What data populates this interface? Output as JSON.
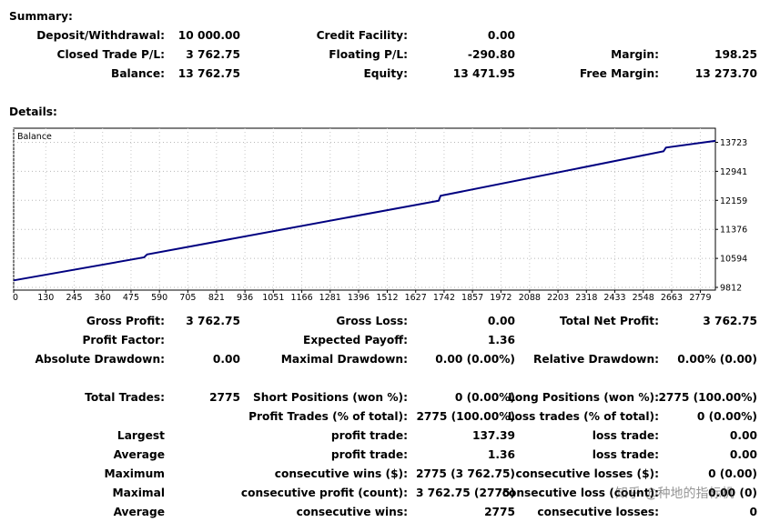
{
  "summary": {
    "title": "Summary:",
    "deposit_label": "Deposit/Withdrawal:",
    "deposit_value": "10 000.00",
    "credit_label": "Credit Facility:",
    "credit_value": "0.00",
    "closed_pl_label": "Closed Trade P/L:",
    "closed_pl_value": "3 762.75",
    "floating_label": "Floating P/L:",
    "floating_value": "-290.80",
    "margin_label": "Margin:",
    "margin_value": "198.25",
    "balance_label": "Balance:",
    "balance_value": "13 762.75",
    "equity_label": "Equity:",
    "equity_value": "13 471.95",
    "free_margin_label": "Free Margin:",
    "free_margin_value": "13 273.70"
  },
  "details": {
    "title": "Details:"
  },
  "chart_data": {
    "type": "line",
    "legend": "Balance",
    "x_ticks": [
      0,
      130,
      245,
      360,
      475,
      590,
      705,
      821,
      936,
      1051,
      1166,
      1281,
      1396,
      1512,
      1627,
      1742,
      1857,
      1972,
      2088,
      2203,
      2318,
      2433,
      2548,
      2663,
      2779
    ],
    "y_ticks": [
      9812,
      10594,
      11376,
      12159,
      12941,
      13723
    ],
    "xlim": [
      0,
      2840
    ],
    "ylim": [
      9812,
      13723
    ],
    "grid": true,
    "series": [
      {
        "name": "Balance",
        "color": "#000080",
        "x": [
          0,
          528,
          540,
          1720,
          1728,
          2630,
          2640,
          2840
        ],
        "y": [
          10000,
          10620,
          10700,
          12150,
          12280,
          13480,
          13580,
          13762.75
        ]
      }
    ]
  },
  "stats": {
    "gross_profit_label": "Gross Profit:",
    "gross_profit_value": "3 762.75",
    "gross_loss_label": "Gross Loss:",
    "gross_loss_value": "0.00",
    "total_net_label": "Total Net Profit:",
    "total_net_value": "3 762.75",
    "profit_factor_label": "Profit Factor:",
    "expected_payoff_label": "Expected Payoff:",
    "expected_payoff_value": "1.36",
    "abs_dd_label": "Absolute Drawdown:",
    "abs_dd_value": "0.00",
    "max_dd_label": "Maximal Drawdown:",
    "max_dd_value": "0.00 (0.00%)",
    "rel_dd_label": "Relative Drawdown:",
    "rel_dd_value": "0.00% (0.00)",
    "total_trades_label": "Total Trades:",
    "total_trades_value": "2775",
    "short_label": "Short Positions (won %):",
    "short_value": "0 (0.00%)",
    "long_label": "Long Positions (won %):",
    "long_value": "2775 (100.00%)",
    "profit_trades_label": "Profit Trades (% of total):",
    "profit_trades_value": "2775 (100.00%)",
    "loss_trades_label": "Loss trades (% of total):",
    "loss_trades_value": "0 (0.00%)",
    "largest_label": "Largest",
    "largest_profit_label": "profit trade:",
    "largest_profit_value": "137.39",
    "largest_loss_label": "loss trade:",
    "largest_loss_value": "0.00",
    "average_label": "Average",
    "avg_profit_label": "profit trade:",
    "avg_profit_value": "1.36",
    "avg_loss_label": "loss trade:",
    "avg_loss_value": "0.00",
    "maximum_label": "Maximum",
    "cons_wins_money_label": "consecutive wins ($):",
    "cons_wins_money_value": "2775 (3 762.75)",
    "cons_losses_money_label": "consecutive losses ($):",
    "cons_losses_money_value": "0 (0.00)",
    "maximal_label": "Maximal",
    "cons_profit_count_label": "consecutive profit (count):",
    "cons_profit_count_value": "3 762.75 (2775)",
    "cons_loss_count_label": "consecutive loss (count):",
    "cons_loss_count_value": "0.00 (0)",
    "average2_label": "Average",
    "avg_cons_wins_label": "consecutive wins:",
    "avg_cons_wins_value": "2775",
    "avg_cons_losses_label": "consecutive losses:",
    "avg_cons_losses_value": "0"
  },
  "watermark": "知乎 @种地的指标机"
}
